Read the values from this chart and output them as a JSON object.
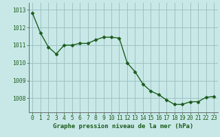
{
  "x": [
    0,
    1,
    2,
    3,
    4,
    5,
    6,
    7,
    8,
    9,
    10,
    11,
    12,
    13,
    14,
    15,
    16,
    17,
    18,
    19,
    20,
    21,
    22,
    23
  ],
  "y": [
    1012.8,
    1011.7,
    1010.9,
    1010.5,
    1011.0,
    1011.0,
    1011.1,
    1011.1,
    1011.3,
    1011.45,
    1011.45,
    1011.4,
    1010.0,
    1009.5,
    1008.8,
    1008.4,
    1008.2,
    1007.9,
    1007.65,
    1007.65,
    1007.8,
    1007.8,
    1008.05,
    1008.1
  ],
  "line_color": "#1a5c1a",
  "marker": "D",
  "marker_size": 2.5,
  "bg_color": "#c8e8e8",
  "grid_color": "#99bbbb",
  "xlabel": "Graphe pression niveau de la mer (hPa)",
  "xlabel_color": "#1a5c1a",
  "tick_color": "#1a5c1a",
  "ytick_labels": [
    "1008",
    "1009",
    "1010",
    "1011",
    "1012",
    "1013"
  ],
  "ytick_values": [
    1008,
    1009,
    1010,
    1011,
    1012,
    1013
  ],
  "ylim": [
    1007.2,
    1013.4
  ],
  "xlim": [
    -0.5,
    23.5
  ],
  "xtick_labels": [
    "0",
    "1",
    "2",
    "3",
    "4",
    "5",
    "6",
    "7",
    "8",
    "9",
    "10",
    "11",
    "12",
    "13",
    "14",
    "15",
    "16",
    "17",
    "18",
    "19",
    "20",
    "21",
    "22",
    "23"
  ],
  "axis_fontsize": 5.8,
  "xlabel_fontsize": 6.5,
  "line_width": 1.0
}
